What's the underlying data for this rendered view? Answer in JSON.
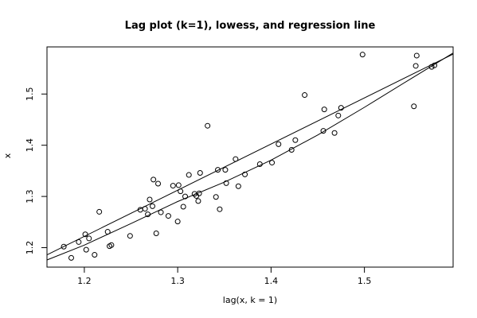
{
  "chart_data": {
    "type": "scatter",
    "title": "Lag plot (k=1), lowess, and regression line",
    "xlabel": "lag(x, k = 1)",
    "ylabel": "x",
    "xlim": [
      1.16,
      1.595
    ],
    "ylim": [
      1.162,
      1.592
    ],
    "x_ticks": [
      1.2,
      1.3,
      1.4,
      1.5
    ],
    "y_ticks": [
      1.2,
      1.3,
      1.4,
      1.5
    ],
    "x_tick_labels": [
      "1.2",
      "1.3",
      "1.4",
      "1.5"
    ],
    "y_tick_labels": [
      "1.2",
      "1.3",
      "1.4",
      "1.5"
    ],
    "grid": false,
    "colors": {
      "points": "#000000",
      "lines": "#000000"
    },
    "points": [
      [
        1.178,
        1.202
      ],
      [
        1.186,
        1.18
      ],
      [
        1.194,
        1.211
      ],
      [
        1.201,
        1.226
      ],
      [
        1.202,
        1.196
      ],
      [
        1.205,
        1.218
      ],
      [
        1.211,
        1.186
      ],
      [
        1.216,
        1.27
      ],
      [
        1.225,
        1.231
      ],
      [
        1.227,
        1.203
      ],
      [
        1.229,
        1.205
      ],
      [
        1.249,
        1.223
      ],
      [
        1.26,
        1.274
      ],
      [
        1.265,
        1.276
      ],
      [
        1.268,
        1.265
      ],
      [
        1.27,
        1.294
      ],
      [
        1.273,
        1.281
      ],
      [
        1.274,
        1.333
      ],
      [
        1.277,
        1.228
      ],
      [
        1.279,
        1.325
      ],
      [
        1.282,
        1.269
      ],
      [
        1.29,
        1.262
      ],
      [
        1.295,
        1.321
      ],
      [
        1.3,
        1.251
      ],
      [
        1.301,
        1.322
      ],
      [
        1.303,
        1.31
      ],
      [
        1.306,
        1.28
      ],
      [
        1.308,
        1.3
      ],
      [
        1.312,
        1.342
      ],
      [
        1.318,
        1.305
      ],
      [
        1.32,
        1.301
      ],
      [
        1.322,
        1.291
      ],
      [
        1.323,
        1.306
      ],
      [
        1.324,
        1.346
      ],
      [
        1.332,
        1.438
      ],
      [
        1.341,
        1.299
      ],
      [
        1.343,
        1.352
      ],
      [
        1.345,
        1.275
      ],
      [
        1.351,
        1.352
      ],
      [
        1.352,
        1.326
      ],
      [
        1.362,
        1.373
      ],
      [
        1.365,
        1.32
      ],
      [
        1.372,
        1.343
      ],
      [
        1.388,
        1.363
      ],
      [
        1.401,
        1.366
      ],
      [
        1.408,
        1.402
      ],
      [
        1.422,
        1.391
      ],
      [
        1.426,
        1.41
      ],
      [
        1.436,
        1.498
      ],
      [
        1.456,
        1.428
      ],
      [
        1.457,
        1.47
      ],
      [
        1.468,
        1.424
      ],
      [
        1.472,
        1.458
      ],
      [
        1.475,
        1.473
      ],
      [
        1.498,
        1.577
      ],
      [
        1.553,
        1.476
      ],
      [
        1.555,
        1.555
      ],
      [
        1.556,
        1.575
      ],
      [
        1.572,
        1.553
      ],
      [
        1.575,
        1.556
      ]
    ],
    "regression_line": [
      [
        1.16,
        1.186
      ],
      [
        1.595,
        1.578
      ]
    ],
    "lowess_line": [
      [
        1.16,
        1.176
      ],
      [
        1.2,
        1.205
      ],
      [
        1.25,
        1.247
      ],
      [
        1.3,
        1.29
      ],
      [
        1.35,
        1.328
      ],
      [
        1.4,
        1.371
      ],
      [
        1.45,
        1.42
      ],
      [
        1.5,
        1.474
      ],
      [
        1.55,
        1.53
      ],
      [
        1.595,
        1.58
      ]
    ]
  }
}
